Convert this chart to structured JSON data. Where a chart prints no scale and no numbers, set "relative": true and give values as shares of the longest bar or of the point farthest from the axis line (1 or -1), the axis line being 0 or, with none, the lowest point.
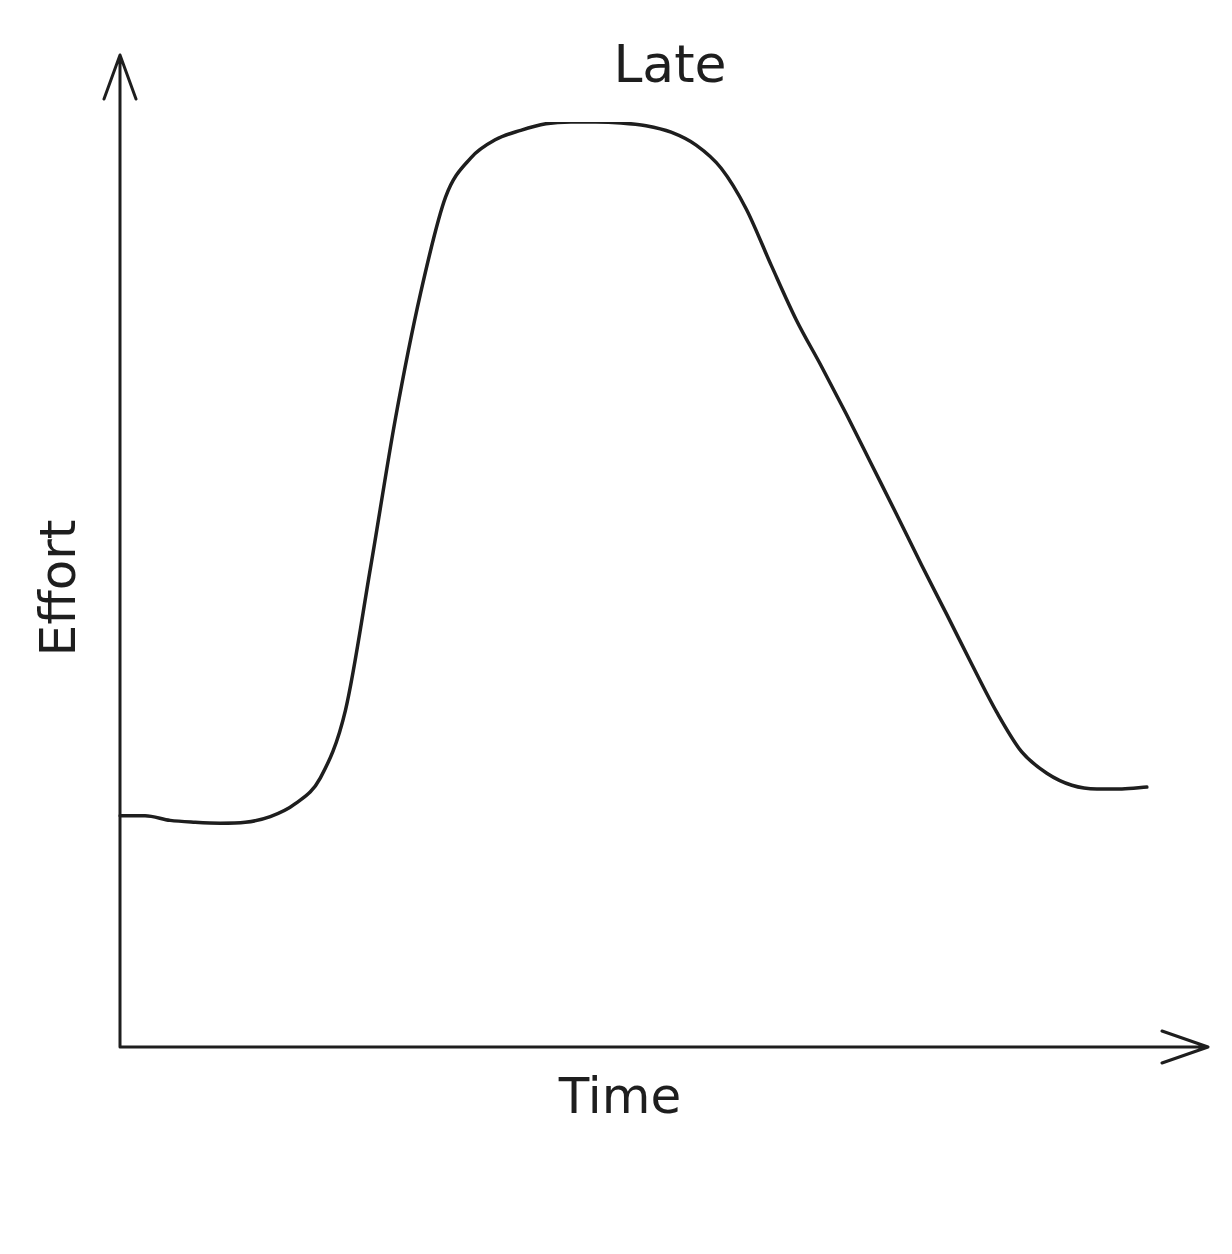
{
  "chart_data": {
    "type": "line",
    "title": "Late",
    "xlabel": "Time",
    "ylabel": "Effort",
    "relative": true,
    "marker": "none",
    "line_style": "solid",
    "categories": [
      null,
      null,
      null,
      null,
      null,
      null,
      null,
      null,
      null,
      null,
      null,
      null,
      null,
      null,
      null,
      null,
      null,
      null,
      null,
      null,
      null,
      null,
      null,
      null,
      null,
      null,
      null,
      null,
      null,
      null,
      null,
      null,
      null,
      null,
      null,
      null,
      null,
      null,
      null,
      null,
      null,
      null
    ],
    "series": [
      {
        "color": "#1e1e1e",
        "values": [
          0.25,
          0.25,
          0.245,
          0.243,
          0.242,
          0.243,
          0.249,
          0.263,
          0.291,
          0.364,
          0.518,
          0.68,
          0.815,
          0.919,
          0.961,
          0.981,
          0.991,
          0.998,
          1,
          1,
          0.999,
          0.996,
          0.989,
          0.975,
          0.95,
          0.906,
          0.845,
          0.786,
          0.736,
          0.684,
          0.63,
          0.576,
          0.521,
          0.468,
          0.414,
          0.362,
          0.319,
          0.296,
          0.283,
          0.279,
          0.279,
          0.281
        ]
      }
    ]
  }
}
